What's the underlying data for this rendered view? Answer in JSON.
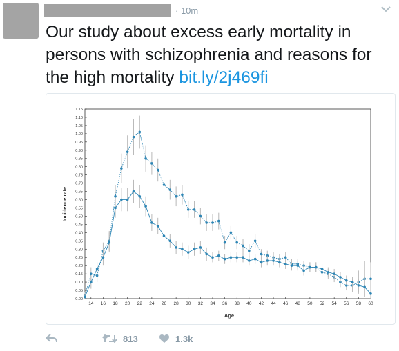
{
  "tweet": {
    "time": "· 10m",
    "text": "Our study about excess early mortality in persons with schizophrenia and reasons for the high mortality",
    "link": "bit.ly/2j469fi"
  },
  "actions": {
    "retweet_count": "813",
    "like_count": "1.3k"
  },
  "icons": [
    "reply-icon",
    "retweet-icon",
    "heart-icon",
    "chevron-down-icon"
  ],
  "colors": {
    "link": "#1b95e0",
    "series": "#2e86b5",
    "error": "#b8b8b8"
  },
  "chart_data": {
    "type": "line",
    "xlabel": "Age",
    "ylabel": "Incidence rate",
    "xlim": [
      13,
      60
    ],
    "ylim": [
      0,
      1.15
    ],
    "x_ticks": [
      14,
      16,
      18,
      20,
      22,
      24,
      26,
      28,
      30,
      32,
      34,
      36,
      38,
      40,
      42,
      44,
      46,
      48,
      50,
      52,
      54,
      56,
      58,
      60
    ],
    "y_ticks": [
      "0.00",
      "0.05",
      "0.10",
      "0.15",
      "0.20",
      "0.25",
      "0.30",
      "0.35",
      "0.40",
      "0.45",
      "0.50",
      "0.55",
      "0.60",
      "0.65",
      "0.70",
      "0.75",
      "0.80",
      "0.85",
      "0.90",
      "0.95",
      "1.00",
      "1.05",
      "1.10",
      "1.15"
    ],
    "x": [
      13,
      14,
      15,
      16,
      17,
      18,
      19,
      20,
      21,
      22,
      23,
      24,
      25,
      26,
      27,
      28,
      29,
      30,
      31,
      32,
      33,
      34,
      35,
      36,
      37,
      38,
      39,
      40,
      41,
      42,
      43,
      44,
      45,
      46,
      47,
      48,
      49,
      50,
      51,
      52,
      53,
      54,
      55,
      56,
      57,
      58,
      59,
      60
    ],
    "series": [
      {
        "values": [
          0.02,
          0.15,
          0.14,
          0.29,
          0.35,
          0.62,
          0.79,
          0.89,
          0.98,
          1.01,
          0.85,
          0.82,
          0.78,
          0.69,
          0.66,
          0.62,
          0.63,
          0.54,
          0.54,
          0.5,
          0.46,
          0.46,
          0.47,
          0.34,
          0.4,
          0.34,
          0.32,
          0.29,
          0.35,
          0.27,
          0.26,
          0.25,
          0.24,
          0.25,
          0.21,
          0.21,
          0.2,
          0.19,
          0.19,
          0.16,
          0.15,
          0.13,
          0.1,
          0.08,
          0.08,
          0.1,
          0.12,
          0.12
        ],
        "errors": [
          0.02,
          0.04,
          0.04,
          0.05,
          0.06,
          0.07,
          0.09,
          0.1,
          0.11,
          0.1,
          0.08,
          0.07,
          0.07,
          0.06,
          0.06,
          0.06,
          0.06,
          0.05,
          0.05,
          0.05,
          0.05,
          0.05,
          0.05,
          0.04,
          0.04,
          0.04,
          0.04,
          0.04,
          0.04,
          0.03,
          0.03,
          0.03,
          0.03,
          0.03,
          0.03,
          0.03,
          0.03,
          0.03,
          0.03,
          0.03,
          0.03,
          0.03,
          0.03,
          0.03,
          0.04,
          0.07,
          0.11,
          0.1
        ]
      },
      {
        "values": [
          0.01,
          0.1,
          0.18,
          0.25,
          0.34,
          0.55,
          0.6,
          0.6,
          0.65,
          0.62,
          0.56,
          0.46,
          0.44,
          0.38,
          0.35,
          0.31,
          0.3,
          0.28,
          0.3,
          0.31,
          0.27,
          0.25,
          0.26,
          0.24,
          0.25,
          0.25,
          0.25,
          0.23,
          0.24,
          0.22,
          0.23,
          0.23,
          0.22,
          0.21,
          0.2,
          0.2,
          0.17,
          0.19,
          0.19,
          0.18,
          0.16,
          0.15,
          0.13,
          0.11,
          0.1,
          0.08,
          0.07,
          0.03
        ],
        "errors": [
          0.02,
          0.04,
          0.04,
          0.05,
          0.06,
          0.06,
          0.07,
          0.07,
          0.07,
          0.07,
          0.06,
          0.05,
          0.05,
          0.05,
          0.04,
          0.04,
          0.04,
          0.04,
          0.04,
          0.04,
          0.04,
          0.03,
          0.03,
          0.03,
          0.03,
          0.03,
          0.03,
          0.03,
          0.03,
          0.03,
          0.03,
          0.03,
          0.03,
          0.03,
          0.03,
          0.03,
          0.03,
          0.03,
          0.03,
          0.03,
          0.03,
          0.03,
          0.03,
          0.03,
          0.03,
          0.04,
          0.06,
          0.06
        ]
      }
    ]
  }
}
